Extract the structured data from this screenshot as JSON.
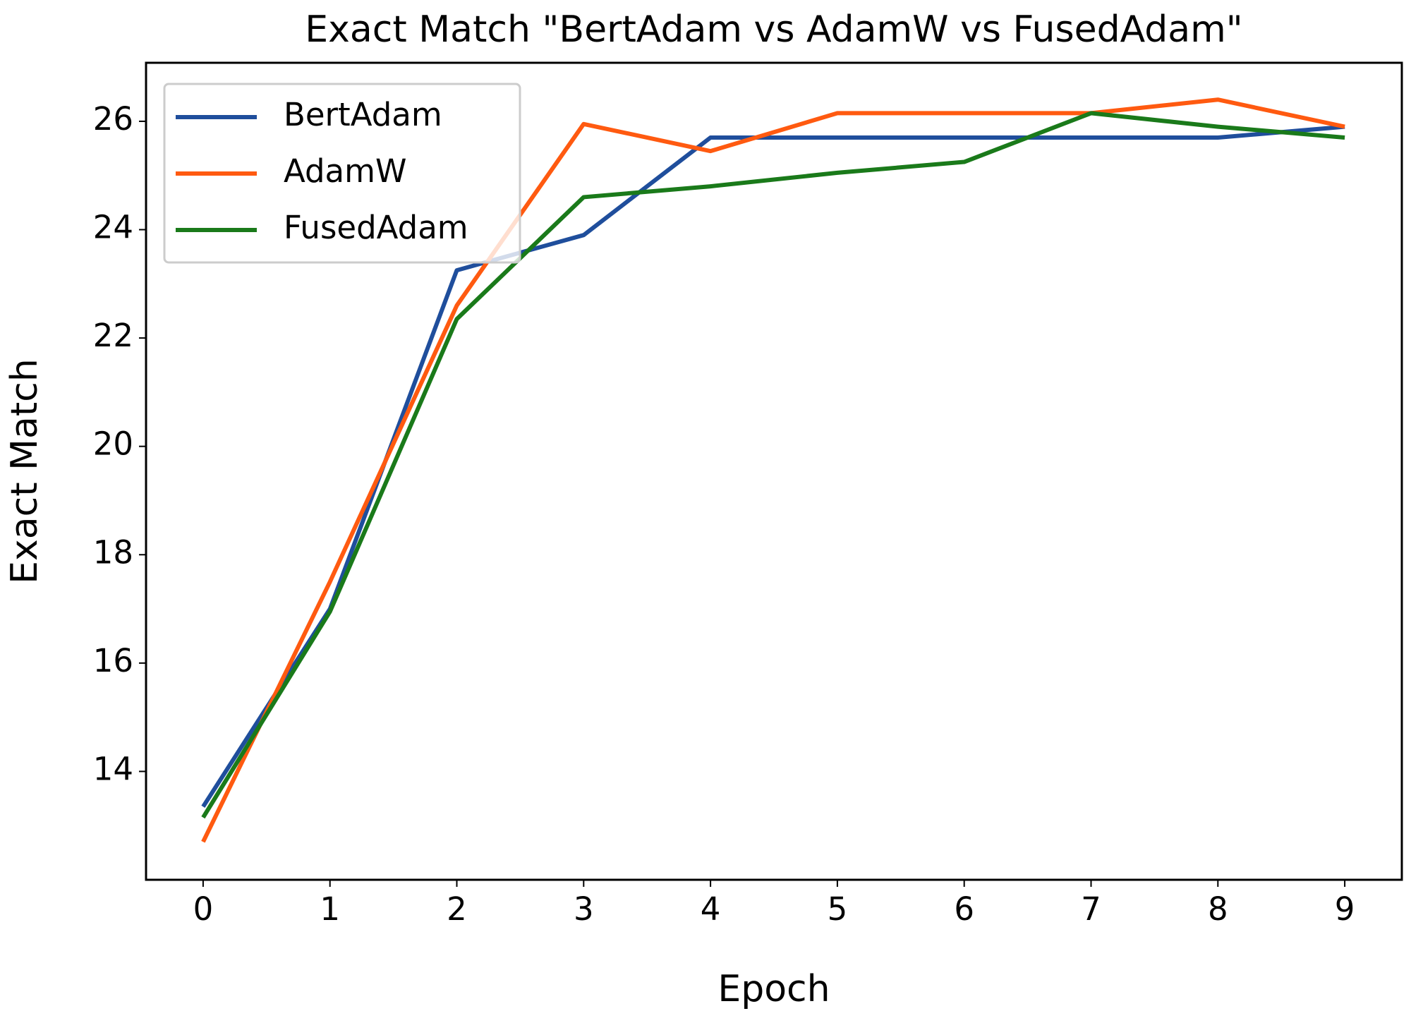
{
  "chart_data": {
    "type": "line",
    "title": "Exact Match \"BertAdam vs AdamW vs FusedAdam\"",
    "x_label": "Epoch",
    "y_label": "Exact Match",
    "x": [
      0,
      1,
      2,
      3,
      4,
      5,
      6,
      7,
      8,
      9
    ],
    "series": [
      {
        "name": "BertAdam",
        "color": "#1f4e9c",
        "values": [
          13.35,
          17.0,
          23.25,
          23.9,
          25.7,
          25.7,
          25.7,
          25.7,
          25.7,
          25.9
        ]
      },
      {
        "name": "AdamW",
        "color": "#ff5a10",
        "values": [
          12.7,
          17.5,
          22.6,
          25.95,
          25.45,
          26.15,
          26.15,
          26.15,
          26.4,
          25.9
        ]
      },
      {
        "name": "FusedAdam",
        "color": "#1a7a1a",
        "values": [
          13.15,
          16.95,
          22.35,
          24.6,
          24.8,
          25.05,
          25.25,
          26.15,
          25.9,
          25.7
        ]
      }
    ],
    "xlim": [
      -0.45,
      9.45
    ],
    "ylim": [
      12.0,
      27.08
    ],
    "xticks": [
      0,
      1,
      2,
      3,
      4,
      5,
      6,
      7,
      8,
      9
    ],
    "yticks": [
      14,
      16,
      18,
      20,
      22,
      24,
      26
    ],
    "grid": false,
    "legend": "upper left"
  }
}
